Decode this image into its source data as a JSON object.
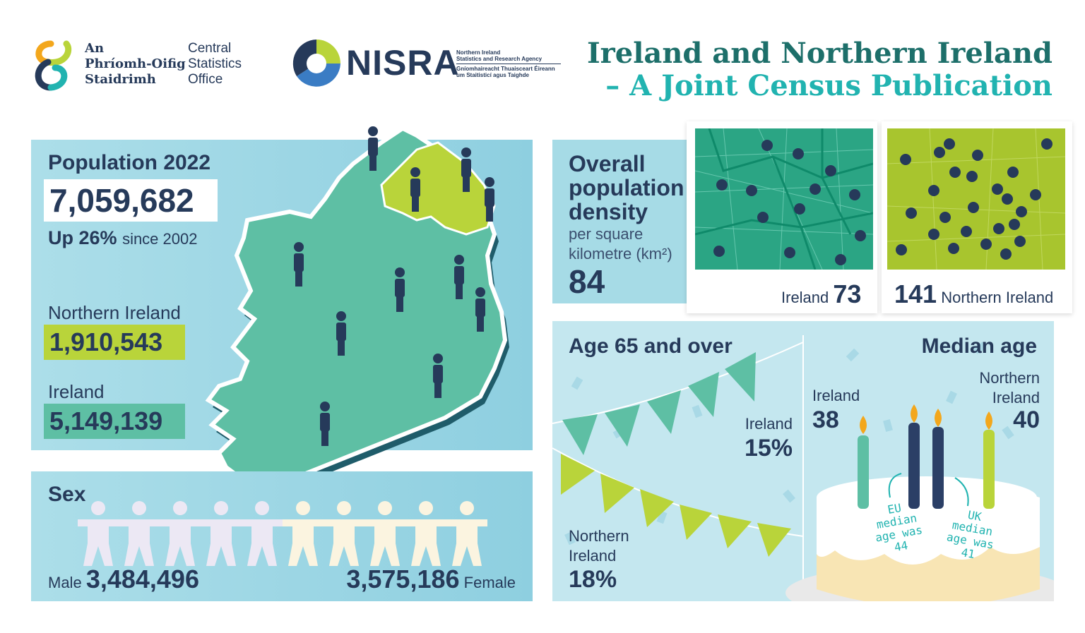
{
  "header": {
    "cso_irish": [
      "An",
      "Phríomh-Oifig",
      "Staidrimh"
    ],
    "cso_english": [
      "Central",
      "Statistics",
      "Office"
    ],
    "nisra_wordmark": "NISRA",
    "nisra_small_en": [
      "Northern Ireland",
      "Statistics and Research Agency"
    ],
    "nisra_small_ga": [
      "Gníomhaireacht Thuaisceart Éireann",
      "um Staitisticí agus Taighde"
    ],
    "title_line1": "Ireland and Northern Ireland",
    "title_line2": "– A Joint Census Publication"
  },
  "population": {
    "label": "Population 2022",
    "total": "7,059,682",
    "up_pct": "Up 26%",
    "up_since": "since 2002",
    "ni_label": "Northern Ireland",
    "ni_value": "1,910,543",
    "ie_label": "Ireland",
    "ie_value": "5,149,139"
  },
  "sex": {
    "label": "Sex",
    "male_label": "Male",
    "male_value": "3,484,496",
    "female_value": "3,575,186",
    "female_label": "Female"
  },
  "density": {
    "title": [
      "Overall",
      "population",
      "density"
    ],
    "sub": [
      "per square",
      "kilometre (km²)"
    ],
    "overall": "84",
    "ie_label": "Ireland",
    "ie_value": "73",
    "ni_value": "141",
    "ni_label": "Northern Ireland"
  },
  "age65": {
    "title": "Age 65 and over",
    "ie_label": "Ireland",
    "ie_value": "15%",
    "ni_label": [
      "Northern",
      "Ireland"
    ],
    "ni_value": "18%"
  },
  "median_age": {
    "title": "Median age",
    "ie_label": "Ireland",
    "ie_value": "38",
    "ni_label": [
      "Northern",
      "Ireland"
    ],
    "ni_value": "40",
    "eu_note": [
      "EU",
      "median",
      "age was",
      "44"
    ],
    "uk_note": [
      "UK",
      "median",
      "age was",
      "41"
    ]
  },
  "colors": {
    "navy": "#263a5a",
    "ireland_green": "#5ebfa4",
    "ni_lime": "#b9d43a",
    "teal_title": "#1d6f6a",
    "panel_blue": "#a6dbe6"
  }
}
